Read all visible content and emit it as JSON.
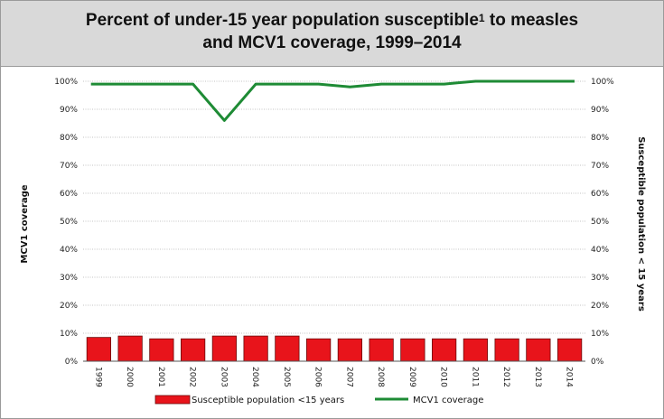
{
  "title": {
    "line1_pre": "Percent of under-15 year population susceptible",
    "sup": "1",
    "line1_post": " to measles",
    "line2": "and MCV1 coverage, 1999–2014"
  },
  "chart_data": {
    "type": "bar",
    "categories": [
      "1999",
      "2000",
      "2001",
      "2002",
      "2003",
      "2004",
      "2005",
      "2006",
      "2007",
      "2008",
      "2009",
      "2010",
      "2011",
      "2012",
      "2013",
      "2014"
    ],
    "y_ticks": [
      "0%",
      "10%",
      "20%",
      "30%",
      "40%",
      "50%",
      "60%",
      "70%",
      "80%",
      "90%",
      "100%"
    ],
    "ylabel_left": "MCV1 coverage",
    "ylabel_right": "Susceptible population  < 15 years",
    "ylim": [
      0,
      100
    ],
    "grid": true,
    "legend_position": "bottom",
    "series": [
      {
        "name": "Susceptible population <15 years",
        "type": "bar",
        "color": "#e8141b",
        "values": [
          8.5,
          9,
          8,
          8,
          9,
          9,
          9,
          8,
          8,
          8,
          8,
          8,
          8,
          8,
          8,
          8
        ]
      },
      {
        "name": "MCV1 coverage",
        "type": "line",
        "color": "#1e8b35",
        "values": [
          99,
          99,
          99,
          99,
          86,
          99,
          99,
          99,
          98,
          99,
          99,
          99,
          100,
          100,
          100,
          100
        ]
      }
    ]
  }
}
